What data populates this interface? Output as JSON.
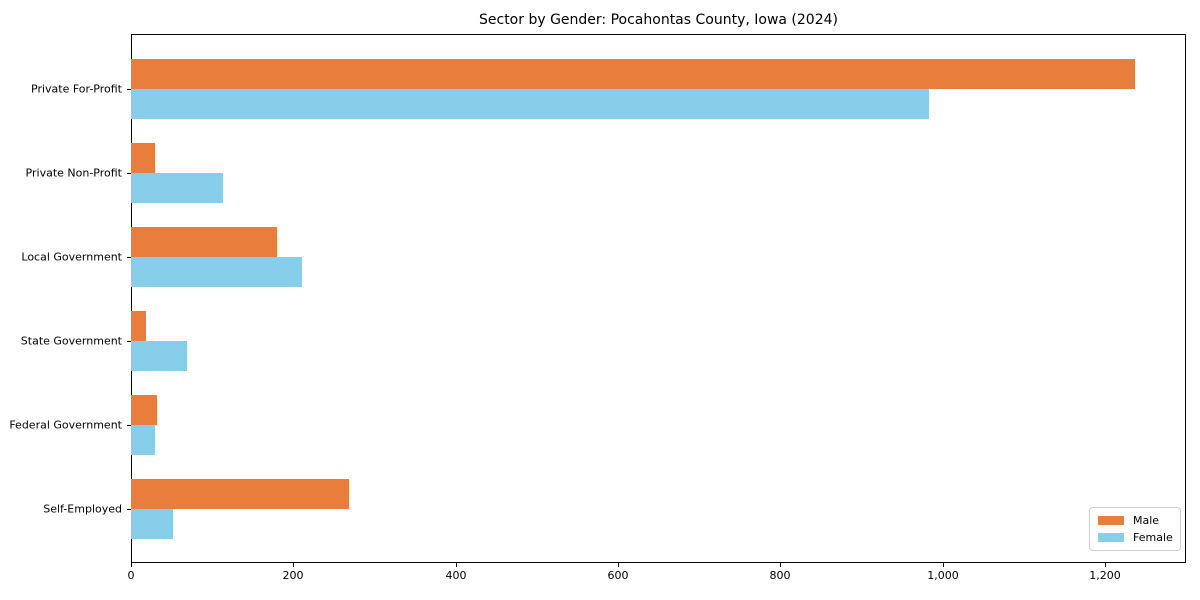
{
  "chart_data": {
    "type": "bar",
    "orientation": "horizontal",
    "title": "Sector by Gender: Pocahontas County, Iowa (2024)",
    "xlabel": "",
    "ylabel": "",
    "categories": [
      "Private For-Profit",
      "Private Non-Profit",
      "Local Government",
      "State Government",
      "Federal Government",
      "Self-Employed"
    ],
    "series": [
      {
        "name": "Male",
        "color": "#e87d3c",
        "values": [
          1237,
          30,
          180,
          18,
          32,
          269
        ]
      },
      {
        "name": "Female",
        "color": "#87ceeb",
        "values": [
          983,
          113,
          211,
          69,
          30,
          52
        ]
      }
    ],
    "xlim": [
      0,
      1300
    ],
    "xticks": [
      0,
      200,
      400,
      600,
      800,
      1000,
      1200
    ],
    "xtick_labels": [
      "0",
      "200",
      "400",
      "600",
      "800",
      "1,000",
      "1,200"
    ],
    "grid": false,
    "legend": {
      "position": "lower right",
      "entries": [
        "Male",
        "Female"
      ]
    }
  }
}
